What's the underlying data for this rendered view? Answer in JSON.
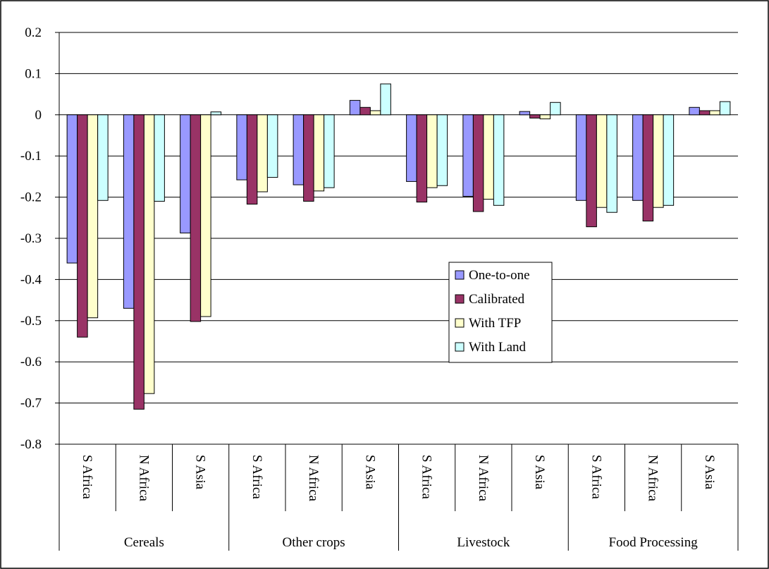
{
  "chart_data": {
    "type": "bar",
    "title": "",
    "xlabel": "",
    "ylabel": "",
    "ylim": [
      -0.8,
      0.2
    ],
    "yticks": [
      0.2,
      0.1,
      0,
      -0.1,
      -0.2,
      -0.3,
      -0.4,
      -0.5,
      -0.6,
      -0.7,
      -0.8
    ],
    "grid": "horizontal",
    "legend_position": "right-middle",
    "groups": [
      {
        "label": "Cereals",
        "categories": [
          "S Africa",
          "N Africa",
          "S Asia"
        ]
      },
      {
        "label": "Other crops",
        "categories": [
          "S Africa",
          "N Africa",
          "S Asia"
        ]
      },
      {
        "label": "Livestock",
        "categories": [
          "S Africa",
          "N Africa",
          "S Asia"
        ]
      },
      {
        "label": "Food Processing",
        "categories": [
          "S Africa",
          "N Africa",
          "S Asia"
        ]
      }
    ],
    "series": [
      {
        "name": "One-to-one",
        "color": "#9999ff",
        "values": [
          -0.36,
          -0.47,
          -0.287,
          -0.158,
          -0.17,
          0.035,
          -0.162,
          -0.198,
          0.008,
          -0.208,
          -0.208,
          0.018
        ]
      },
      {
        "name": "Calibrated",
        "color": "#993366",
        "values": [
          -0.54,
          -0.715,
          -0.502,
          -0.217,
          -0.21,
          0.018,
          -0.212,
          -0.235,
          -0.008,
          -0.272,
          -0.258,
          0.01
        ]
      },
      {
        "name": "With TFP",
        "color": "#ffffcc",
        "values": [
          -0.493,
          -0.677,
          -0.49,
          -0.187,
          -0.185,
          0.01,
          -0.177,
          -0.205,
          -0.01,
          -0.225,
          -0.225,
          0.01
        ]
      },
      {
        "name": "With Land",
        "color": "#ccffff",
        "values": [
          -0.208,
          -0.21,
          0.007,
          -0.152,
          -0.177,
          0.075,
          -0.172,
          -0.22,
          0.03,
          -0.237,
          -0.22,
          0.032
        ]
      }
    ]
  }
}
